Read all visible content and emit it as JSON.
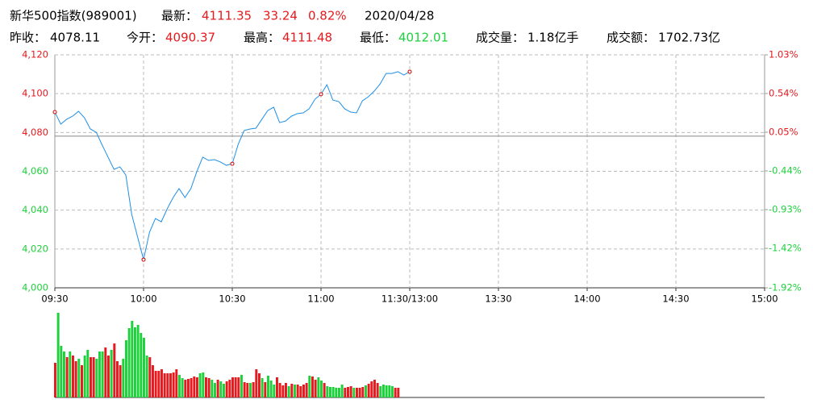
{
  "header": {
    "name": "新华500指数(989001)",
    "latest_label": "最新：",
    "latest": "4111.35",
    "change": "33.24",
    "change_pct": "0.82%",
    "date": "2020/04/28",
    "prev_close_label": "昨收：",
    "prev_close": "4078.11",
    "open_label": "今开：",
    "open": "4090.37",
    "high_label": "最高：",
    "high": "4111.48",
    "low_label": "最低：",
    "low": "4012.01",
    "volume_label": "成交量：",
    "volume": "1.18亿手",
    "amount_label": "成交额：",
    "amount": "1702.73亿"
  },
  "chart_data": {
    "type": "line",
    "color": "#1e8fe6",
    "reference": 4078.11,
    "up_color": "#e51a1e",
    "down_color": "#1cd13a",
    "grid": true,
    "x": [
      0,
      2,
      4,
      6,
      8,
      10,
      12,
      14,
      16,
      18,
      20,
      22,
      24,
      26,
      28,
      30,
      32,
      34,
      36,
      38,
      40,
      42,
      44,
      46,
      48,
      50,
      52,
      54,
      56,
      58,
      60,
      62,
      64,
      66,
      68,
      70,
      72,
      74,
      76,
      78,
      80,
      82,
      84,
      86,
      88,
      90,
      92,
      94,
      96,
      98,
      100,
      102,
      104,
      106,
      108,
      110,
      112,
      114,
      116,
      118,
      120
    ],
    "values": [
      4090.5,
      4084.3,
      4086.8,
      4088.4,
      4090.9,
      4087.6,
      4081.8,
      4080.1,
      4073.5,
      4067.3,
      4061.0,
      4062.3,
      4058.1,
      4037.8,
      4026.1,
      4014.5,
      4028.6,
      4035.7,
      4034.0,
      4040.7,
      4046.5,
      4051.1,
      4046.5,
      4051.1,
      4059.8,
      4067.3,
      4065.6,
      4066.0,
      4064.8,
      4063.1,
      4063.9,
      4073.9,
      4081.0,
      4081.8,
      4082.2,
      4086.8,
      4091.3,
      4093.0,
      4085.1,
      4085.9,
      4088.4,
      4089.7,
      4090.1,
      4092.2,
      4097.2,
      4099.7,
      4104.6,
      4096.7,
      4095.9,
      4092.2,
      4090.5,
      4090.1,
      4096.3,
      4098.4,
      4101.3,
      4105.0,
      4110.4,
      4110.4,
      4111.3,
      4109.6,
      4111.3
    ],
    "xlim": [
      0,
      240
    ],
    "xticks": [
      {
        "value": 0,
        "label": "09:30"
      },
      {
        "value": 30,
        "label": "10:00"
      },
      {
        "value": 60,
        "label": "10:30"
      },
      {
        "value": 90,
        "label": "11:00"
      },
      {
        "value": 120,
        "label": "11:30/13:00"
      },
      {
        "value": 150,
        "label": "13:30"
      },
      {
        "value": 180,
        "label": "14:00"
      },
      {
        "value": 210,
        "label": "14:30"
      },
      {
        "value": 240,
        "label": "15:00"
      }
    ],
    "ylim": [
      4000,
      4120
    ],
    "yticks": [
      {
        "value": 4000,
        "label": "4,000"
      },
      {
        "value": 4020,
        "label": "4,020"
      },
      {
        "value": 4040,
        "label": "4,040"
      },
      {
        "value": 4060,
        "label": "4,060"
      },
      {
        "value": 4080,
        "label": "4,080"
      },
      {
        "value": 4100,
        "label": "4,100"
      },
      {
        "value": 4120,
        "label": "4,120"
      }
    ],
    "y2lim": [
      -1.92,
      1.03
    ],
    "y2ticks": [
      {
        "value": -1.92,
        "label": "-1.92%"
      },
      {
        "value": -1.42,
        "label": "-1.42%"
      },
      {
        "value": -0.93,
        "label": "-0.93%"
      },
      {
        "value": -0.44,
        "label": "-0.44%"
      },
      {
        "value": 0.05,
        "label": "0.05%"
      },
      {
        "value": 0.54,
        "label": "0.54%"
      },
      {
        "value": 1.03,
        "label": "1.03%"
      }
    ],
    "volume": {
      "values": [
        43,
        105,
        64,
        57,
        50,
        57,
        52,
        45,
        48,
        40,
        52,
        59,
        50,
        50,
        48,
        57,
        57,
        62,
        52,
        59,
        67,
        45,
        40,
        48,
        71,
        86,
        95,
        87,
        90,
        80,
        74,
        52,
        50,
        40,
        33,
        33,
        35,
        30,
        30,
        30,
        31,
        35,
        28,
        24,
        22,
        23,
        24,
        26,
        25,
        30,
        31,
        25,
        24,
        22,
        18,
        22,
        20,
        17,
        20,
        22,
        25,
        25,
        25,
        28,
        19,
        18,
        18,
        19,
        35,
        30,
        24,
        19,
        27,
        21,
        16,
        25,
        18,
        15,
        18,
        14,
        17,
        16,
        16,
        14,
        16,
        18,
        27,
        26,
        22,
        25,
        21,
        18,
        14,
        13,
        13,
        12,
        12,
        16,
        12,
        13,
        14,
        12,
        12,
        12,
        13,
        15,
        17,
        20,
        22,
        18,
        14,
        16,
        15,
        15,
        14,
        12,
        12
      ],
      "colors": [
        "#e51a1e",
        "#1cd13a",
        "#1cd13a",
        "#1cd13a",
        "#e51a1e",
        "#1cd13a",
        "#e51a1e",
        "#e51a1e",
        "#1cd13a",
        "#e51a1e",
        "#1cd13a",
        "#1cd13a",
        "#e51a1e",
        "#e51a1e",
        "#1cd13a",
        "#1cd13a",
        "#1cd13a",
        "#e51a1e",
        "#e51a1e",
        "#1cd13a",
        "#e51a1e",
        "#e51a1e",
        "#e51a1e",
        "#1cd13a",
        "#1cd13a",
        "#1cd13a",
        "#1cd13a",
        "#1cd13a",
        "#1cd13a",
        "#1cd13a",
        "#1cd13a",
        "#1cd13a",
        "#e51a1e",
        "#e51a1e",
        "#e51a1e",
        "#e51a1e",
        "#e51a1e",
        "#e51a1e",
        "#e51a1e",
        "#e51a1e",
        "#e51a1e",
        "#e51a1e",
        "#1cd13a",
        "#1cd13a",
        "#e51a1e",
        "#e51a1e",
        "#e51a1e",
        "#e51a1e",
        "#e51a1e",
        "#1cd13a",
        "#1cd13a",
        "#e51a1e",
        "#e51a1e",
        "#1cd13a",
        "#1cd13a",
        "#e51a1e",
        "#1cd13a",
        "#1cd13a",
        "#e51a1e",
        "#e51a1e",
        "#e51a1e",
        "#e51a1e",
        "#e51a1e",
        "#1cd13a",
        "#e51a1e",
        "#e51a1e",
        "#1cd13a",
        "#e51a1e",
        "#e51a1e",
        "#e51a1e",
        "#1cd13a",
        "#e51a1e",
        "#1cd13a",
        "#1cd13a",
        "#1cd13a",
        "#e51a1e",
        "#e51a1e",
        "#e51a1e",
        "#e51a1e",
        "#1cd13a",
        "#e51a1e",
        "#1cd13a",
        "#e51a1e",
        "#e51a1e",
        "#e51a1e",
        "#e51a1e",
        "#1cd13a",
        "#e51a1e",
        "#e51a1e",
        "#1cd13a",
        "#1cd13a",
        "#e51a1e",
        "#1cd13a",
        "#1cd13a",
        "#1cd13a",
        "#1cd13a",
        "#1cd13a",
        "#1cd13a",
        "#e51a1e",
        "#e51a1e",
        "#e51a1e",
        "#1cd13a",
        "#e51a1e",
        "#e51a1e",
        "#e51a1e",
        "#1cd13a",
        "#e51a1e",
        "#e51a1e",
        "#e51a1e",
        "#e51a1e",
        "#1cd13a",
        "#1cd13a",
        "#1cd13a",
        "#1cd13a",
        "#1cd13a",
        "#e51a1e",
        "#e51a1e"
      ]
    }
  }
}
